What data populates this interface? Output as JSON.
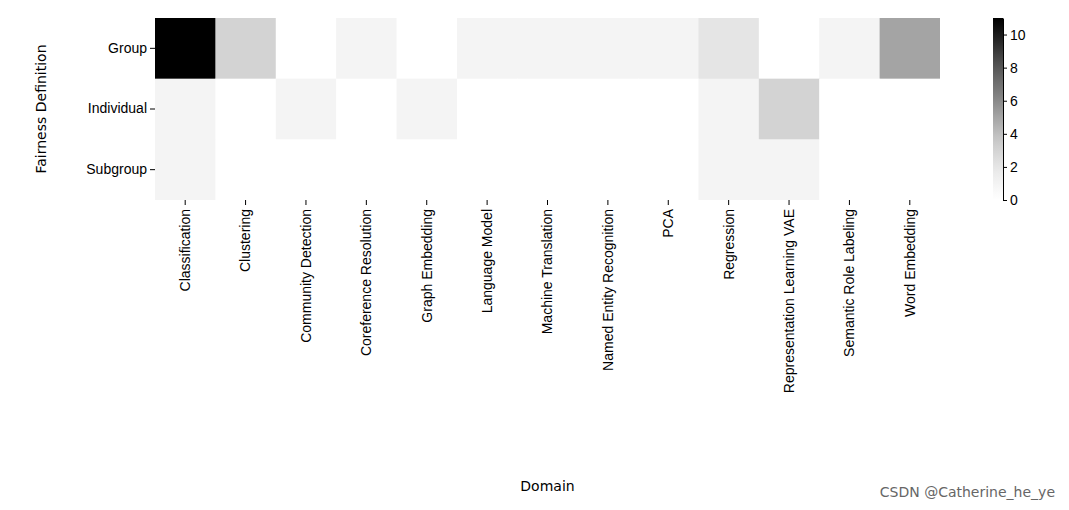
{
  "chart_data": {
    "type": "heatmap",
    "x_label": "Domain",
    "y_label": "Fairness Definition",
    "x_categories": [
      "Classification",
      "Clustering",
      "Community Detection",
      "Coreference Resolution",
      "Graph Embedding",
      "Language Model",
      "Machine Translation",
      "Named Entity Recognition",
      "PCA",
      "Regression",
      "Representation Learning VAE",
      "Semantic Role Labeling",
      "Word Embedding"
    ],
    "y_categories": [
      "Group",
      "Individual",
      "Subgroup"
    ],
    "values": [
      [
        11,
        3,
        0,
        1,
        0,
        1,
        1,
        1,
        1,
        2,
        0,
        1,
        5
      ],
      [
        1,
        0,
        1,
        0,
        1,
        0,
        0,
        0,
        0,
        1,
        3,
        0,
        0
      ],
      [
        1,
        0,
        0,
        0,
        0,
        0,
        0,
        0,
        0,
        1,
        1,
        0,
        0
      ]
    ],
    "color": "Greys",
    "colorbar": {
      "range": [
        0,
        11
      ],
      "ticks": [
        0,
        2,
        4,
        6,
        8,
        10
      ]
    },
    "annotations": [
      "CSDN @Catherine_he_ye"
    ]
  }
}
